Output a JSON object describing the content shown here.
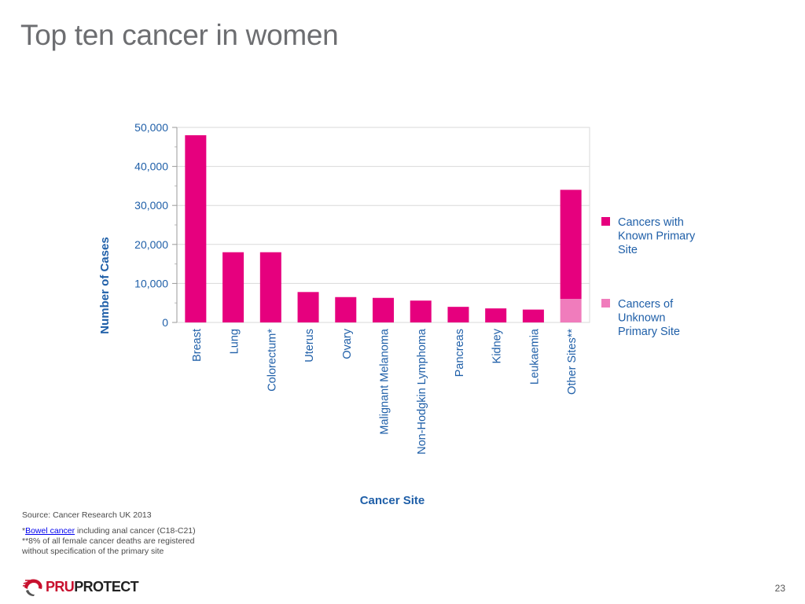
{
  "slide": {
    "title": "Top ten cancer in women",
    "page_number": "23"
  },
  "footnotes": {
    "source": "Source: Cancer Research UK 2013",
    "bowel_prefix": "*",
    "bowel_link": "Bowel cancer",
    "bowel_rest": " including anal cancer (C18-C21)",
    "other_sites_note_line1": "**8% of all female cancer deaths are registered",
    "other_sites_note_line2": "without specification of the primary site"
  },
  "logo": {
    "part1": "PRU",
    "part2": "PROTECT"
  },
  "colors": {
    "known": "#e6007e",
    "unknown": "#f07cbc",
    "axis_label": "#1f5fa8",
    "grid": "#d9d9d9"
  },
  "chart_data": {
    "type": "bar",
    "stacked": true,
    "xlabel": "Cancer Site",
    "ylabel": "Number of Cases",
    "ylim": [
      0,
      50000
    ],
    "yticks": [
      0,
      10000,
      20000,
      30000,
      40000,
      50000
    ],
    "ytick_labels": [
      "0",
      "10,000",
      "20,000",
      "30,000",
      "40,000",
      "50,000"
    ],
    "grid": true,
    "legend_position": "right",
    "categories": [
      "Breast",
      "Lung",
      "Colorectum*",
      "Uterus",
      "Ovary",
      "Malignant Melanoma",
      "Non-Hodgkin Lymphoma",
      "Pancreas",
      "Kidney",
      "Leukaemia",
      "Other Sites**"
    ],
    "series": [
      {
        "name": "Cancers with Known Primary Site",
        "values": [
          48000,
          18000,
          18000,
          7800,
          6500,
          6300,
          5600,
          4000,
          3600,
          3300,
          28000
        ]
      },
      {
        "name": "Cancers of Unknown Primary Site",
        "values": [
          0,
          0,
          0,
          0,
          0,
          0,
          0,
          0,
          0,
          0,
          6000
        ]
      }
    ]
  }
}
